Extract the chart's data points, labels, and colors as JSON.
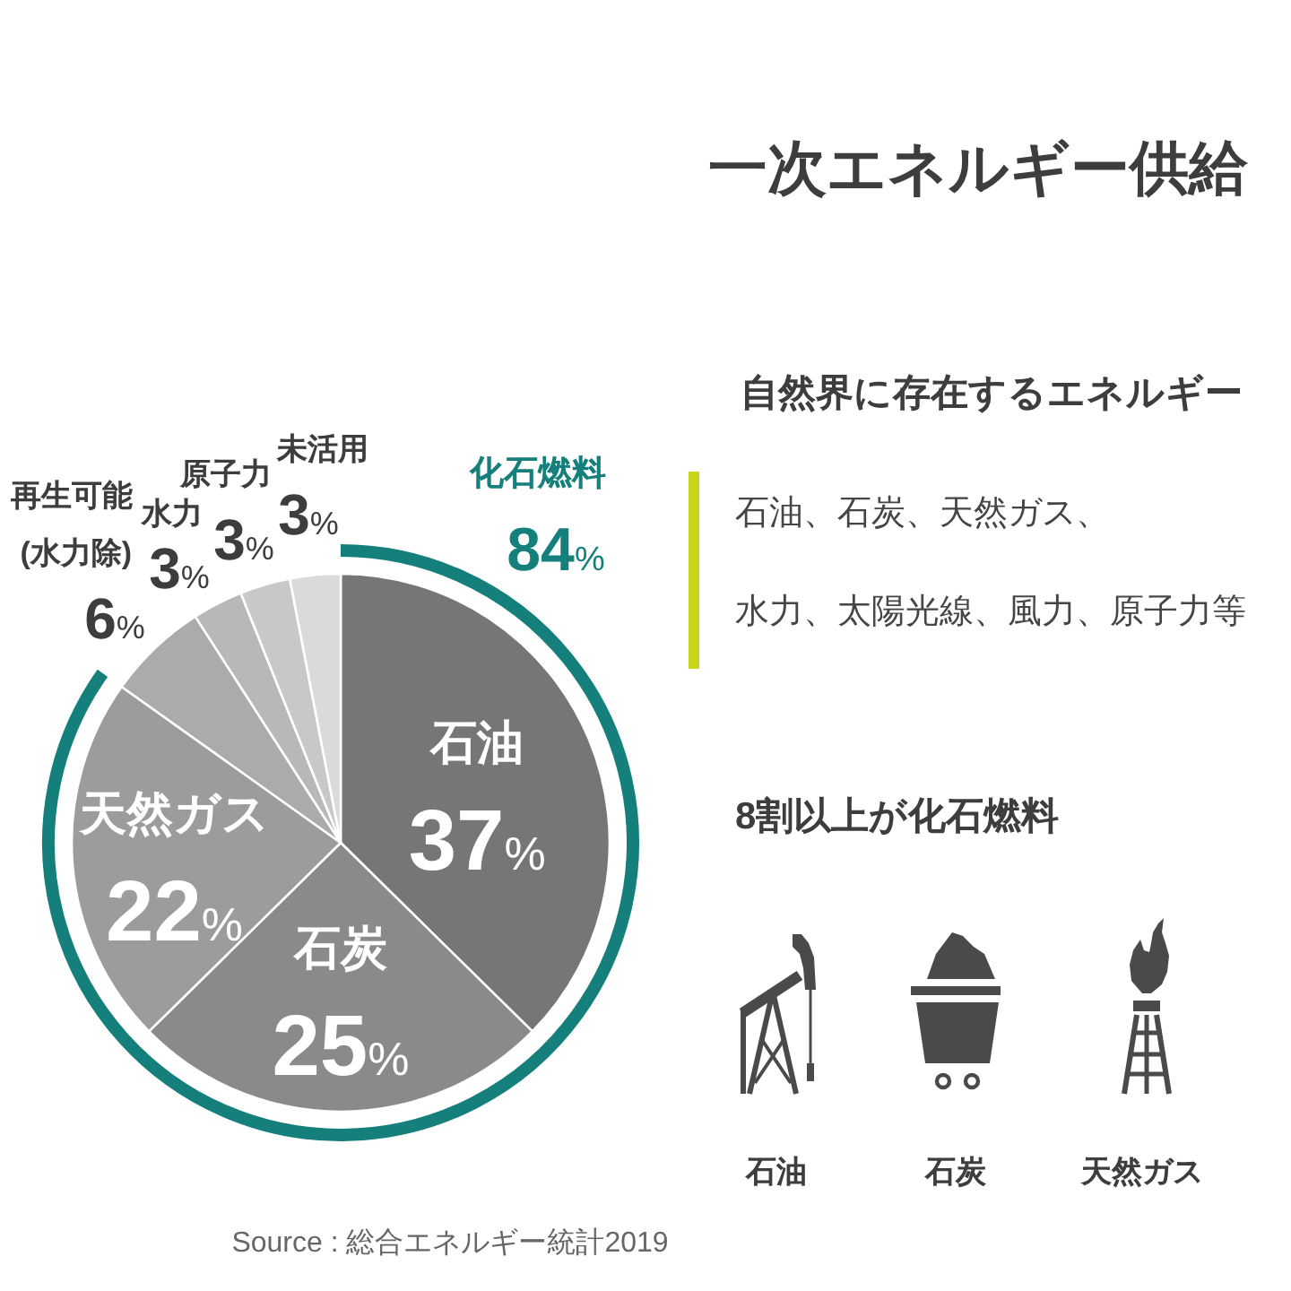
{
  "chart_data": {
    "type": "pie",
    "title": "一次エネルギー供給",
    "subtitle": "自然界に存在するエネルギー",
    "categories": [
      "石油",
      "石炭",
      "天然ガス",
      "再生可能 (水力除)",
      "水力",
      "原子力",
      "未活用"
    ],
    "values": [
      37,
      25,
      22,
      6,
      3,
      3,
      3
    ],
    "colors": [
      "#767676",
      "#8a8a8a",
      "#9c9c9c",
      "#ababab",
      "#b8b8b8",
      "#c8c8c8",
      "#dadada"
    ],
    "value_labels": [
      "37%",
      "25%",
      "22%",
      "6%",
      "3%",
      "3%",
      "3%"
    ],
    "annotations": [
      "化石燃料",
      "84%",
      "石油、石炭、天然ガス、",
      "水力、太陽光線、風力、原子力等",
      "8割以上が化石燃料",
      "石油",
      "石炭",
      "天然ガス",
      "Source : 総合エネルギー統計2019"
    ]
  }
}
